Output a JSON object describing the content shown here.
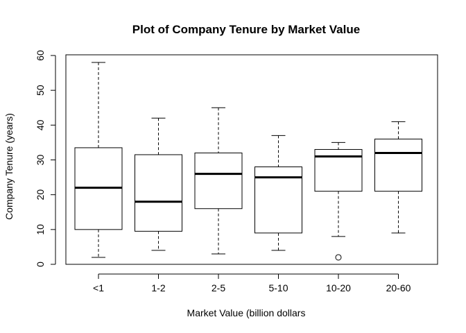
{
  "chart_data": {
    "type": "boxplot",
    "title": "Plot of Company Tenure by Market Value",
    "xlabel": "Market Value (billion dollars",
    "ylabel": "Company Tenure (years)",
    "ylim": [
      0,
      60
    ],
    "yticks": [
      "0",
      "10",
      "20",
      "30",
      "40",
      "50",
      "60"
    ],
    "categories": [
      "<1",
      "1-2",
      "2-5",
      "5-10",
      "10-20",
      "20-60"
    ],
    "boxes": [
      {
        "category": "<1",
        "whisker_low": 2,
        "q1": 10,
        "median": 22,
        "q3": 33.5,
        "whisker_high": 58,
        "outliers": []
      },
      {
        "category": "1-2",
        "whisker_low": 4,
        "q1": 9.5,
        "median": 18,
        "q3": 31.5,
        "whisker_high": 42,
        "outliers": []
      },
      {
        "category": "2-5",
        "whisker_low": 3,
        "q1": 16,
        "median": 26,
        "q3": 32,
        "whisker_high": 45,
        "outliers": []
      },
      {
        "category": "5-10",
        "whisker_low": 4,
        "q1": 9,
        "median": 25,
        "q3": 28,
        "whisker_high": 37,
        "outliers": []
      },
      {
        "category": "10-20",
        "whisker_low": 8,
        "q1": 21,
        "median": 31,
        "q3": 33,
        "whisker_high": 35,
        "outliers": [
          2
        ]
      },
      {
        "category": "20-60",
        "whisker_low": 9,
        "q1": 21,
        "median": 32,
        "q3": 36,
        "whisker_high": 41,
        "outliers": []
      }
    ],
    "grid": false,
    "legend": "none",
    "colors": {
      "line": "#000000",
      "box_fill": "#ffffff",
      "background": "#ffffff"
    }
  }
}
